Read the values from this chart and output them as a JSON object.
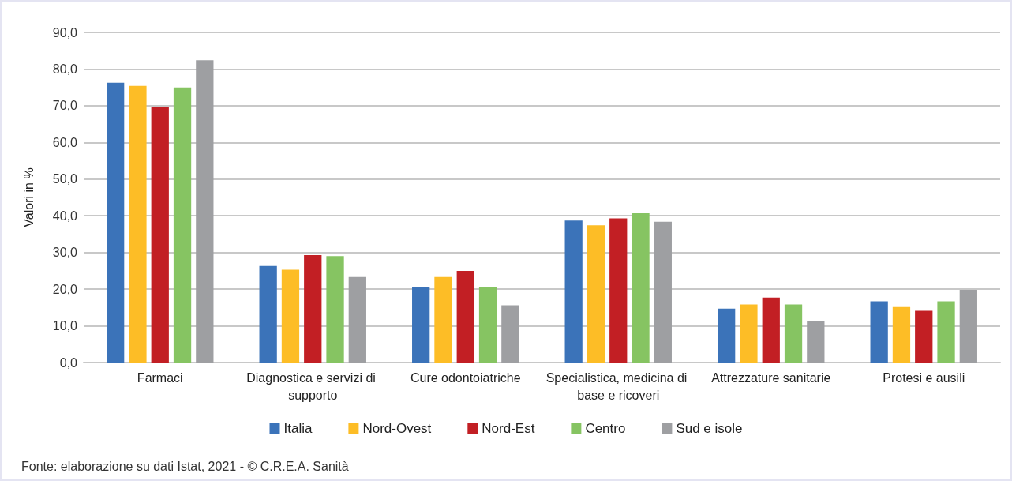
{
  "chart_data": {
    "type": "bar",
    "ylabel": "Valori in %",
    "categories": [
      "Farmaci",
      "Diagnostica e servizi di supporto",
      "Cure odontoiatriche",
      "Specialistica, medicina di base e ricoveri",
      "Attrezzature sanitarie",
      "Protesi e ausili"
    ],
    "series": [
      {
        "name": "Italia",
        "color": "#3b73b9",
        "values": [
          76.3,
          26.3,
          20.6,
          38.7,
          14.7,
          16.7
        ]
      },
      {
        "name": "Nord-Ovest",
        "color": "#fdbd26",
        "values": [
          75.4,
          25.3,
          23.3,
          37.4,
          15.8,
          15.1
        ]
      },
      {
        "name": "Nord-Est",
        "color": "#c21f24",
        "values": [
          69.7,
          29.3,
          25.0,
          39.3,
          17.7,
          14.1
        ]
      },
      {
        "name": "Centro",
        "color": "#86c462",
        "values": [
          75.0,
          29.0,
          20.6,
          40.7,
          15.8,
          16.7
        ]
      },
      {
        "name": "Sud e isole",
        "color": "#9e9fa2",
        "values": [
          82.4,
          23.3,
          15.6,
          38.4,
          11.4,
          19.8
        ]
      }
    ],
    "ylim": [
      0,
      90
    ],
    "yticks": [
      {
        "value": 0,
        "label": "0,0"
      },
      {
        "value": 10,
        "label": "10,0"
      },
      {
        "value": 20,
        "label": "20,0"
      },
      {
        "value": 30,
        "label": "30,0"
      },
      {
        "value": 40,
        "label": "40,0"
      },
      {
        "value": 50,
        "label": "50,0"
      },
      {
        "value": 60,
        "label": "60,0"
      },
      {
        "value": 70,
        "label": "70,0"
      },
      {
        "value": 80,
        "label": "80,0"
      },
      {
        "value": 90,
        "label": "90,0"
      }
    ],
    "grid": "y",
    "legend": "bottom",
    "annotations": [
      "Fonte: elaborazione su dati Istat, 2021 - © C.R.E.A. Sanità"
    ]
  }
}
